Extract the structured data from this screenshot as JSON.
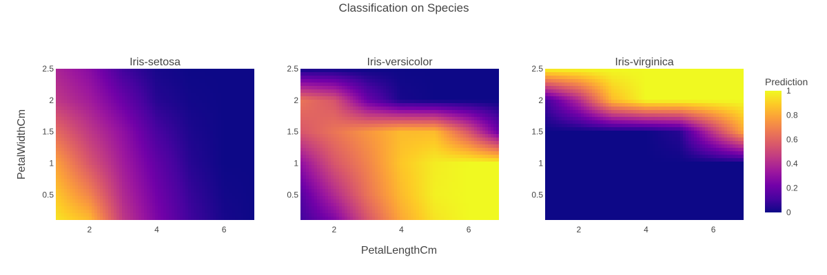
{
  "chart_data": {
    "type": "heatmap",
    "title": "Classification on Species",
    "xlabel": "PetalLengthCm",
    "ylabel": "PetalWidthCm",
    "xlim": [
      1,
      6.9
    ],
    "ylim": [
      0.1,
      2.5
    ],
    "x_ticks": [
      "2",
      "4",
      "6"
    ],
    "y_ticks": [
      "0.5",
      "1",
      "1.5",
      "2",
      "2.5"
    ],
    "panels": [
      {
        "name": "Iris-setosa",
        "x": [
          1,
          2,
          3,
          4,
          5,
          6,
          6.9
        ],
        "y": [
          0.1,
          0.5,
          1.0,
          1.5,
          2.0,
          2.5
        ],
        "z": [
          [
            0.95,
            0.85,
            0.45,
            0.25,
            0.1,
            0.02,
            0.0
          ],
          [
            0.88,
            0.7,
            0.4,
            0.22,
            0.08,
            0.01,
            0.0
          ],
          [
            0.78,
            0.55,
            0.35,
            0.18,
            0.05,
            0.0,
            0.0
          ],
          [
            0.62,
            0.45,
            0.3,
            0.12,
            0.03,
            0.0,
            0.0
          ],
          [
            0.45,
            0.35,
            0.2,
            0.05,
            0.01,
            0.0,
            0.0
          ],
          [
            0.38,
            0.28,
            0.1,
            0.02,
            0.0,
            0.0,
            0.0
          ]
        ]
      },
      {
        "name": "Iris-versicolor",
        "x": [
          1,
          2,
          3,
          4,
          5,
          6,
          6.9
        ],
        "y": [
          0.1,
          0.5,
          1.0,
          1.5,
          2.0,
          2.5
        ],
        "z": [
          [
            0.1,
            0.25,
            0.55,
            0.8,
            0.95,
            1.0,
            1.0
          ],
          [
            0.15,
            0.4,
            0.65,
            0.85,
            0.98,
            1.0,
            1.0
          ],
          [
            0.3,
            0.55,
            0.7,
            0.88,
            0.97,
            1.0,
            1.0
          ],
          [
            0.55,
            0.65,
            0.75,
            0.85,
            0.85,
            0.55,
            0.2
          ],
          [
            0.65,
            0.55,
            0.2,
            0.02,
            0.0,
            0.0,
            0.0
          ],
          [
            0.0,
            0.0,
            0.0,
            0.0,
            0.0,
            0.0,
            0.0
          ]
        ]
      },
      {
        "name": "Iris-virginica",
        "x": [
          1,
          2,
          3,
          4,
          5,
          6,
          6.9
        ],
        "y": [
          0.1,
          0.5,
          1.0,
          1.5,
          2.0,
          2.5
        ],
        "z": [
          [
            0.0,
            0.0,
            0.0,
            0.0,
            0.0,
            0.0,
            0.0
          ],
          [
            0.0,
            0.0,
            0.0,
            0.0,
            0.0,
            0.0,
            0.0
          ],
          [
            0.0,
            0.0,
            0.0,
            0.0,
            0.0,
            0.0,
            0.0
          ],
          [
            0.0,
            0.0,
            0.0,
            0.0,
            0.05,
            0.45,
            0.8
          ],
          [
            0.1,
            0.4,
            0.85,
            1.0,
            1.0,
            1.0,
            1.0
          ],
          [
            1.0,
            1.0,
            1.0,
            1.0,
            1.0,
            1.0,
            1.0
          ]
        ]
      }
    ],
    "colorbar": {
      "title": "Prediction",
      "range": [
        0,
        1
      ],
      "ticks": [
        "0",
        "0.2",
        "0.4",
        "0.6",
        "0.8",
        "1"
      ],
      "colorscale": [
        "#0d0887",
        "#46039f",
        "#7201a8",
        "#9c179e",
        "#bd3786",
        "#d8576b",
        "#ed7953",
        "#fb9f3a",
        "#fdca26",
        "#f0f921"
      ]
    }
  }
}
